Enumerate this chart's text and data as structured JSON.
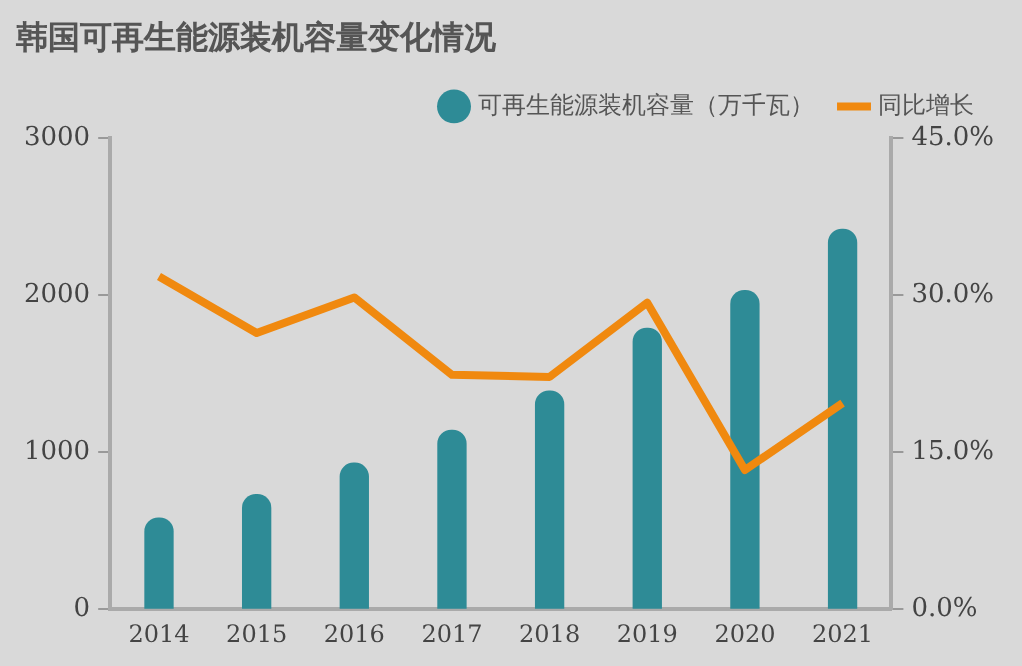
{
  "chart_data": {
    "type": "bar",
    "title": "韩国可再生能源装机容量变化情况",
    "categories": [
      "2014",
      "2015",
      "2016",
      "2017",
      "2018",
      "2019",
      "2020",
      "2021"
    ],
    "series": [
      {
        "name": "可再生能源装机容量（万千瓦）",
        "color": "#2e8b96",
        "values": [
          580,
          730,
          930,
          1140,
          1390,
          1790,
          2030,
          2420
        ]
      },
      {
        "name": "同比增长",
        "type": "line",
        "axis": "y2",
        "color": "#f0890f",
        "values": [
          31.8,
          26.4,
          29.8,
          22.4,
          22.2,
          29.3,
          13.3,
          19.7
        ]
      }
    ],
    "ylim": [
      0,
      3000
    ],
    "yticks": [
      0,
      1000,
      2000,
      3000
    ],
    "y2lim": [
      0,
      45
    ],
    "y2ticks": [
      {
        "value": 0,
        "label": "0.0%"
      },
      {
        "value": 15,
        "label": "15.0%"
      },
      {
        "value": 30,
        "label": "30.0%"
      },
      {
        "value": 45,
        "label": "45.0%"
      }
    ],
    "grid": false,
    "legend": "top right",
    "marker": "none",
    "line_style": "solid"
  }
}
